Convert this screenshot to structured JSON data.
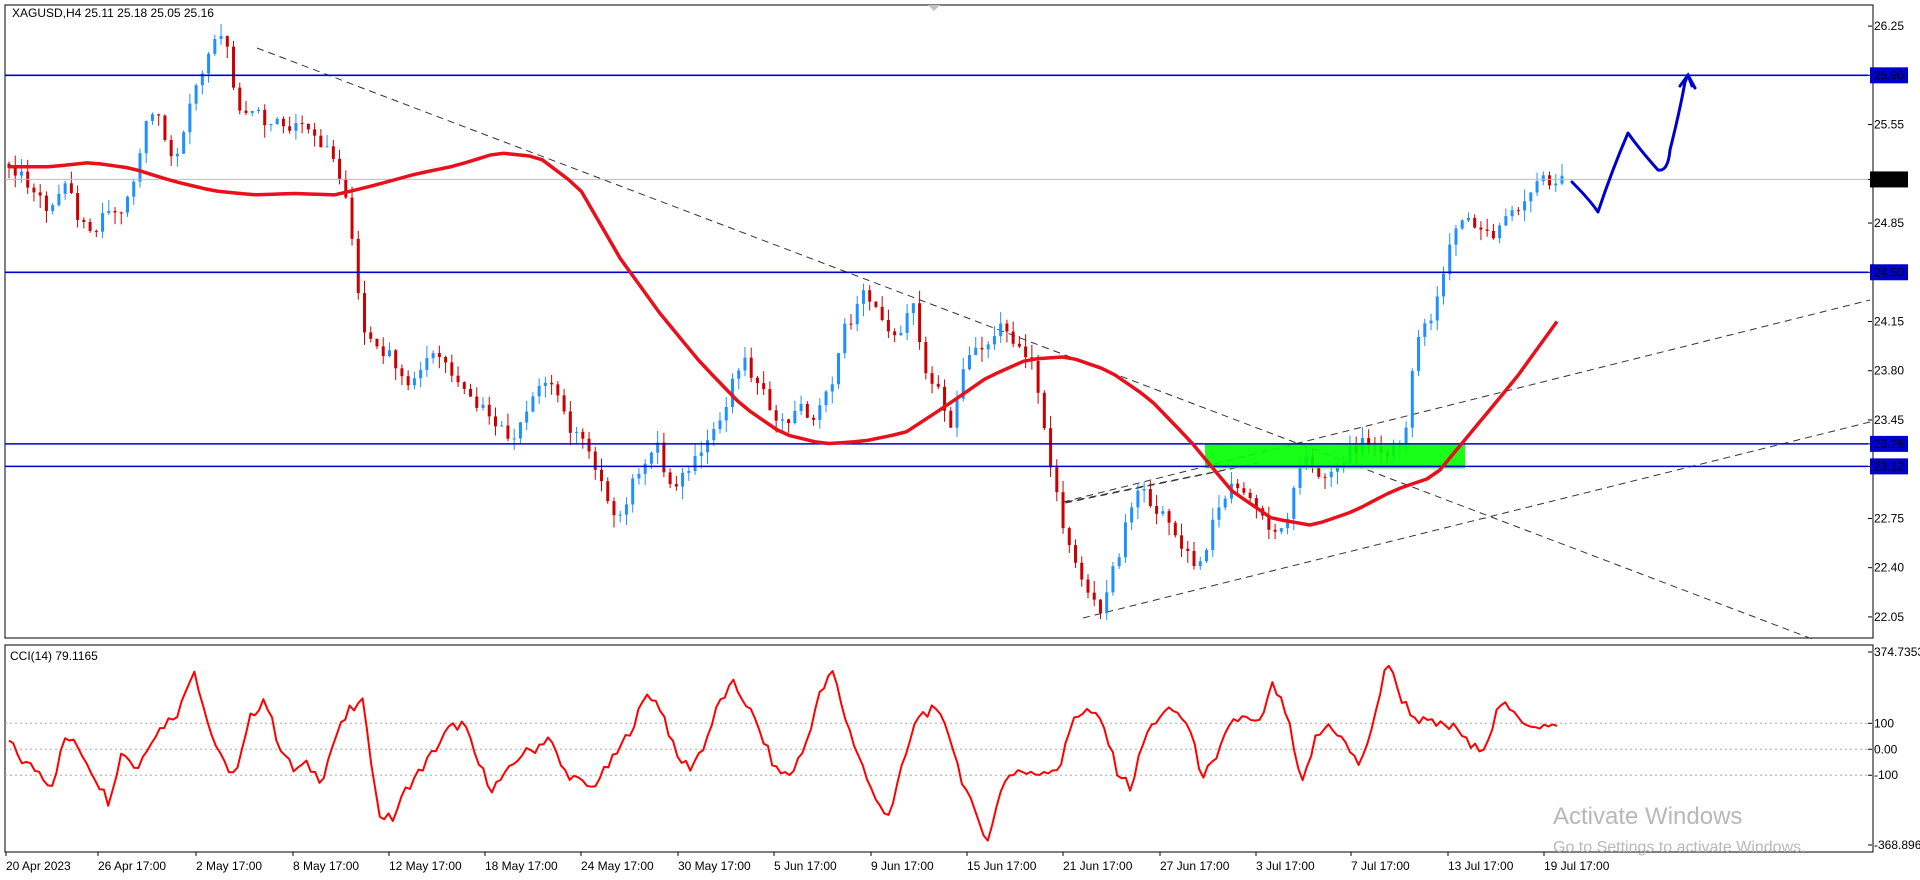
{
  "symbol_header": "XAGUSD,H4  25.11 25.18 25.05 25.16",
  "indicator_header": "CCI(14) 79.1165",
  "price_axis": {
    "min": 21.9,
    "max": 26.4,
    "ticks": [
      "26.25",
      "25.90",
      "25.55",
      "25.16",
      "24.85",
      "24.50",
      "24.15",
      "23.80",
      "23.45",
      "23.28",
      "23.12",
      "22.75",
      "22.40",
      "22.05"
    ]
  },
  "cci_axis": {
    "min": -368.8963,
    "max": 374.7353,
    "ticks": [
      "374.7353",
      "100",
      "0.00",
      "-100",
      "-368.8963"
    ]
  },
  "time_labels": [
    "20 Apr 2023",
    "26 Apr 17:00",
    "2 May 17:00",
    "8 May 17:00",
    "12 May 17:00",
    "18 May 17:00",
    "24 May 17:00",
    "30 May 17:00",
    "5 Jun 17:00",
    "9 Jun 17:00",
    "15 Jun 17:00",
    "21 Jun 17:00",
    "27 Jun 17:00",
    "3 Jul 17:00",
    "7 Jul 17:00",
    "13 Jul 17:00",
    "19 Jul 17:00"
  ],
  "current_price": "25.16",
  "horizontal_levels": [
    "25.90",
    "24.50",
    "23.28",
    "23.12"
  ],
  "colors": {
    "bull_candle": "#1e90ff",
    "bear_candle": "#cc0000",
    "moving_average": "#e8101a",
    "level_line": "#0000cd",
    "zone": "#00ff00",
    "cci_line": "#ff0000",
    "projection": "#0000cd",
    "trendline": "#333333"
  },
  "chart_data": {
    "type": "candlestick",
    "instrument": "XAGUSD",
    "timeframe": "H4",
    "close_path": [
      25.2,
      25.25,
      25.1,
      25.05,
      24.95,
      25.05,
      25.1,
      24.9,
      24.75,
      24.8,
      24.95,
      24.9,
      25.0,
      25.2,
      25.6,
      25.7,
      25.4,
      25.35,
      25.55,
      25.8,
      26.0,
      26.2,
      26.15,
      25.7,
      25.6,
      25.65,
      25.55,
      25.6,
      25.5,
      25.55,
      25.6,
      25.5,
      25.4,
      25.3,
      25.1,
      24.7,
      24.1,
      24.05,
      23.95,
      23.9,
      23.8,
      23.7,
      23.85,
      23.95,
      23.9,
      23.8,
      23.75,
      23.6,
      23.55,
      23.5,
      23.4,
      23.3,
      23.45,
      23.6,
      23.7,
      23.75,
      23.55,
      23.4,
      23.35,
      23.2,
      23.0,
      22.9,
      22.75,
      22.9,
      23.1,
      23.2,
      23.25,
      23.0,
      22.95,
      23.1,
      23.2,
      23.35,
      23.4,
      23.55,
      23.8,
      23.85,
      23.7,
      23.6,
      23.5,
      23.4,
      23.55,
      23.5,
      23.45,
      23.6,
      23.8,
      24.1,
      24.2,
      24.35,
      24.3,
      24.1,
      24.0,
      24.15,
      24.25,
      23.8,
      23.7,
      23.6,
      23.4,
      23.8,
      23.9,
      23.95,
      24.05,
      24.1,
      24.05,
      23.95,
      23.9,
      23.5,
      23.1,
      22.8,
      22.5,
      22.3,
      22.2,
      22.1,
      22.3,
      22.5,
      22.8,
      22.95,
      22.9,
      22.8,
      22.7,
      22.6,
      22.5,
      22.4,
      22.6,
      22.8,
      22.95,
      23.0,
      22.9,
      22.85,
      22.7,
      22.6,
      22.75,
      23.0,
      23.2,
      23.1,
      23.0,
      23.1,
      23.2,
      23.25,
      23.3,
      23.25,
      23.2,
      23.25,
      23.3,
      24.0,
      24.1,
      24.2,
      24.5,
      24.8,
      24.9,
      24.85,
      24.8,
      24.75,
      24.85,
      24.95,
      25.0,
      25.1,
      25.15,
      25.1,
      25.16
    ],
    "moving_average_path": [
      25.25,
      25.25,
      25.28,
      25.24,
      25.15,
      25.08,
      25.05,
      25.06,
      25.05,
      25.12,
      25.2,
      25.26,
      25.35,
      25.32,
      25.1,
      24.6,
      24.2,
      23.85,
      23.55,
      23.35,
      23.28,
      23.3,
      23.36,
      23.55,
      23.75,
      23.88,
      23.9,
      23.8,
      23.6,
      23.3,
      22.95,
      22.75,
      22.7,
      22.8,
      22.95,
      23.05,
      23.4,
      23.75,
      24.15
    ],
    "horizontal_levels": [
      25.9,
      24.5,
      23.28,
      23.12
    ],
    "cci_path": [
      30,
      -50,
      -80,
      -140,
      50,
      0,
      -100,
      -200,
      0,
      -80,
      40,
      100,
      150,
      320,
      100,
      -50,
      -100,
      120,
      200,
      20,
      -80,
      -60,
      -120,
      50,
      150,
      180,
      -250,
      -270,
      -150,
      -80,
      0,
      80,
      100,
      -50,
      -150,
      -100,
      -20,
      0,
      50,
      -80,
      -120,
      -150,
      -80,
      0,
      100,
      220,
      150,
      -30,
      -70,
      20,
      180,
      250,
      170,
      50,
      -80,
      -100,
      0,
      200,
      300,
      100,
      -50,
      -200,
      -250,
      -50,
      130,
      150,
      100,
      -100,
      -250,
      -350,
      -120,
      -80,
      -100,
      -80,
      -70,
      130,
      150,
      100,
      -80,
      -150,
      50,
      130,
      150,
      100,
      -100,
      -50,
      110,
      120,
      90,
      250,
      130,
      -150,
      40,
      100,
      30,
      -60,
      70,
      350,
      200,
      120,
      100,
      90,
      80,
      0,
      20,
      180,
      130,
      100,
      90,
      80
    ],
    "projection_path": [
      25.05,
      24.95,
      25.4,
      25.25,
      25.9
    ]
  }
}
